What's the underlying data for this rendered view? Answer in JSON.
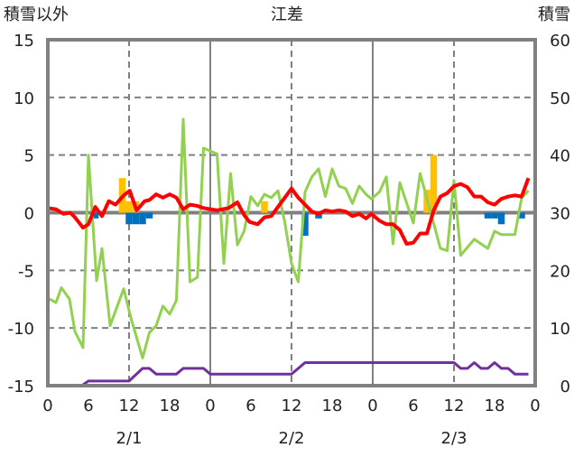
{
  "chart_data": {
    "type": "line",
    "title": "江差",
    "ylabel_left": "積雪以外",
    "ylabel_right": "積雪",
    "ylim_left": [
      -15,
      15
    ],
    "ylim_right": [
      0,
      60
    ],
    "xlim_hours": [
      0,
      72
    ],
    "left_ticks": [
      "15",
      "10",
      "5",
      "0",
      "-5",
      "-10",
      "-15"
    ],
    "right_ticks": [
      "60",
      "50",
      "40",
      "30",
      "20",
      "10",
      "0"
    ],
    "x_ticks": [
      "0",
      "6",
      "12",
      "18",
      "0",
      "6",
      "12",
      "18",
      "0",
      "6",
      "12",
      "18",
      "0"
    ],
    "date_labels": [
      "2/1",
      "2/2",
      "2/3"
    ],
    "colors": {
      "red": "#ff0000",
      "green": "#92d050",
      "purple": "#7030a0",
      "orange": "#ffc000",
      "blue": "#0070c0",
      "frame": "#808080"
    },
    "series": [
      {
        "name": "green",
        "axis": "left",
        "color": "#92d050",
        "x": [
          0,
          1.2,
          2,
          3.2,
          4,
          5.2,
          6,
          7.2,
          8,
          9.2,
          11.2,
          12.3,
          14,
          15,
          16,
          17,
          18,
          19,
          20,
          21,
          22.1,
          23,
          25,
          26,
          27,
          28,
          29,
          30,
          31,
          32,
          33,
          34,
          35,
          36,
          37,
          38,
          39,
          40,
          41,
          42,
          43,
          44,
          45,
          46,
          47,
          47.8,
          49,
          50,
          51,
          52,
          54,
          55,
          58,
          59,
          60,
          61,
          63,
          65,
          66,
          67,
          69,
          70,
          71
        ],
        "y": [
          -7.4,
          -7.8,
          -6.5,
          -7.5,
          -10.3,
          -11.7,
          5.0,
          -5.9,
          -3.1,
          -9.8,
          -6.6,
          -9.2,
          -12.6,
          -10.4,
          -9.8,
          -8.1,
          -8.8,
          -7.6,
          8.1,
          -6.0,
          -5.6,
          5.6,
          5.1,
          -4.4,
          3.4,
          -2.8,
          -1.6,
          1.4,
          0.6,
          1.6,
          1.3,
          1.9,
          -0.8,
          -4.4,
          -6.0,
          1.8,
          3.1,
          3.8,
          1.4,
          3.8,
          2.3,
          2.1,
          0.8,
          2.3,
          1.6,
          1.2,
          1.8,
          3.1,
          -2.7,
          2.6,
          -0.9,
          3.4,
          -3.1,
          -3.3,
          2.8,
          -3.7,
          -2.3,
          -3.1,
          -1.6,
          -1.9,
          -1.9,
          1.3,
          1.9
        ]
      },
      {
        "name": "red",
        "axis": "left",
        "color": "#ff0000",
        "x": [
          0,
          1.2,
          2.3,
          3.3,
          4,
          5.2,
          6,
          7,
          8,
          9,
          10,
          11.2,
          12.1,
          13.1,
          14.3,
          15,
          16,
          17,
          18,
          19,
          20,
          21,
          22,
          23,
          25,
          26.7,
          28,
          29,
          29.8,
          31,
          32,
          33,
          34,
          35,
          36,
          37,
          38,
          39,
          40,
          41,
          42,
          43,
          44,
          45,
          46,
          47,
          47.8,
          49,
          50,
          51,
          52,
          53,
          54,
          55,
          56,
          57,
          58,
          59,
          60,
          61,
          62,
          63,
          64,
          65,
          66,
          67,
          68,
          69,
          70,
          71
        ],
        "y": [
          0.4,
          0.3,
          -0.1,
          0,
          -0.4,
          -1.3,
          -1.0,
          0.5,
          -0.3,
          1.0,
          0.7,
          1.5,
          1.9,
          0.2,
          1.0,
          1.1,
          1.6,
          1.3,
          1.6,
          1.3,
          0.3,
          0.7,
          0.6,
          0.4,
          0.2,
          0.4,
          0.9,
          -0.2,
          -0.8,
          -1.0,
          -0.4,
          -0.3,
          0.5,
          1.3,
          2.1,
          1.3,
          0.7,
          0.1,
          -0.1,
          0.2,
          0.1,
          0.2,
          0.1,
          -0.3,
          -0.1,
          -0.5,
          -0.1,
          -0.7,
          -1.0,
          -1.0,
          -1.5,
          -2.7,
          -2.6,
          -1.8,
          -1.8,
          0.2,
          1.4,
          1.7,
          2.3,
          2.5,
          2.2,
          1.4,
          1.4,
          0.9,
          0.7,
          1.2,
          1.4,
          1.5,
          1.4,
          3.0
        ]
      },
      {
        "name": "purple",
        "axis": "right",
        "color": "#7030a0",
        "x": [
          0,
          5,
          6,
          12,
          14,
          15,
          16,
          19,
          20,
          23,
          24,
          36,
          38,
          60,
          61,
          62,
          63,
          64,
          65,
          66,
          67,
          68,
          69,
          71
        ],
        "y": [
          0,
          0,
          0.8,
          0.8,
          3,
          3,
          2,
          2,
          3,
          3,
          2,
          2,
          4,
          4,
          3,
          3,
          4,
          3,
          3,
          4,
          3,
          3,
          2,
          2
        ]
      }
    ],
    "bars": [
      {
        "name": "orange",
        "axis": "left",
        "color": "#ffc000",
        "x": [
          11,
          12,
          13,
          32,
          56,
          57
        ],
        "y": [
          3.0,
          1.0,
          1.0,
          1.0,
          2.0,
          5.0
        ]
      },
      {
        "name": "blue",
        "axis": "left",
        "color": "#0070c0",
        "x": [
          7,
          12,
          13,
          14,
          15,
          38,
          40,
          65,
          66,
          67,
          70
        ],
        "y": [
          -0.5,
          -1.0,
          -1.0,
          -1.0,
          -0.5,
          -2.0,
          -0.5,
          -0.5,
          -0.5,
          -1.0,
          -0.5
        ]
      }
    ]
  }
}
